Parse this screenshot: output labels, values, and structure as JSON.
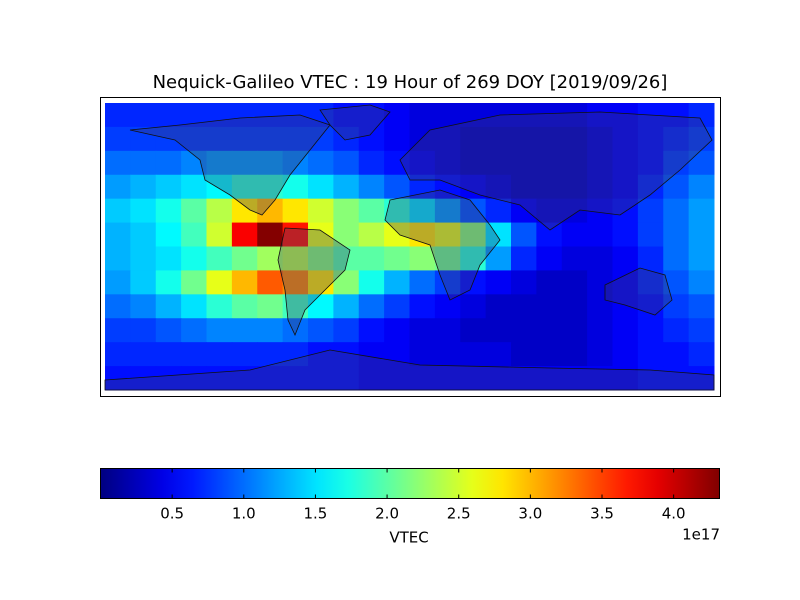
{
  "chart_data": {
    "type": "heatmap",
    "title": "Nequick-Galileo VTEC : 19 Hour of 269 DOY [2019/09/26]",
    "colormap": "jet",
    "xlim": [
      -180,
      180
    ],
    "ylim": [
      90,
      -90
    ],
    "values": [
      [
        0.7,
        0.7,
        0.7,
        0.7,
        0.7,
        0.7,
        0.7,
        0.7,
        0.7,
        0.6,
        0.6,
        0.5,
        0.4,
        0.4,
        0.4,
        0.4,
        0.4,
        0.4,
        0.4,
        0.5,
        0.5,
        0.6,
        0.6,
        0.7
      ],
      [
        0.8,
        0.8,
        0.8,
        0.8,
        0.8,
        0.8,
        0.8,
        0.8,
        0.8,
        0.7,
        0.6,
        0.5,
        0.4,
        0.4,
        0.3,
        0.3,
        0.3,
        0.3,
        0.3,
        0.4,
        0.5,
        0.6,
        0.7,
        0.8
      ],
      [
        1.0,
        1.0,
        1.0,
        1.1,
        1.2,
        1.2,
        1.2,
        1.1,
        1.0,
        0.9,
        0.7,
        0.6,
        0.5,
        0.4,
        0.3,
        0.3,
        0.3,
        0.3,
        0.3,
        0.4,
        0.5,
        0.6,
        0.8,
        0.9
      ],
      [
        1.2,
        1.3,
        1.4,
        1.5,
        1.6,
        1.8,
        1.8,
        1.7,
        1.5,
        1.3,
        1.1,
        0.9,
        0.7,
        0.6,
        0.5,
        0.4,
        0.3,
        0.3,
        0.3,
        0.4,
        0.5,
        0.7,
        0.9,
        1.1
      ],
      [
        1.4,
        1.5,
        1.7,
        2.0,
        2.4,
        2.8,
        3.0,
        2.8,
        2.5,
        2.2,
        2.0,
        1.8,
        1.5,
        1.2,
        0.9,
        0.7,
        0.5,
        0.4,
        0.4,
        0.5,
        0.6,
        0.8,
        1.0,
        1.2
      ],
      [
        1.3,
        1.4,
        1.6,
        1.9,
        2.5,
        3.8,
        4.3,
        3.7,
        2.6,
        2.2,
        2.4,
        2.6,
        2.8,
        2.6,
        2.2,
        1.5,
        0.9,
        0.6,
        0.5,
        0.5,
        0.6,
        0.8,
        1.0,
        1.2
      ],
      [
        1.3,
        1.4,
        1.5,
        1.7,
        1.9,
        2.1,
        2.3,
        2.4,
        2.2,
        2.0,
        2.0,
        2.1,
        2.2,
        2.1,
        1.8,
        1.2,
        0.7,
        0.5,
        0.4,
        0.4,
        0.5,
        0.7,
        1.0,
        1.2
      ],
      [
        1.2,
        1.4,
        1.7,
        2.1,
        2.6,
        3.0,
        3.4,
        3.2,
        2.8,
        2.2,
        1.7,
        1.3,
        1.0,
        0.8,
        0.6,
        0.5,
        0.4,
        0.3,
        0.3,
        0.4,
        0.5,
        0.7,
        0.9,
        1.1
      ],
      [
        1.0,
        1.1,
        1.3,
        1.5,
        1.8,
        2.0,
        2.1,
        1.9,
        1.6,
        1.3,
        1.0,
        0.8,
        0.6,
        0.5,
        0.4,
        0.3,
        0.3,
        0.3,
        0.3,
        0.4,
        0.5,
        0.6,
        0.8,
        0.9
      ],
      [
        0.8,
        0.8,
        0.9,
        1.0,
        1.1,
        1.1,
        1.1,
        1.0,
        0.9,
        0.8,
        0.6,
        0.5,
        0.4,
        0.4,
        0.3,
        0.3,
        0.3,
        0.3,
        0.3,
        0.4,
        0.5,
        0.6,
        0.7,
        0.8
      ],
      [
        0.7,
        0.7,
        0.7,
        0.7,
        0.7,
        0.7,
        0.7,
        0.7,
        0.6,
        0.6,
        0.5,
        0.5,
        0.4,
        0.4,
        0.4,
        0.4,
        0.3,
        0.3,
        0.3,
        0.4,
        0.5,
        0.6,
        0.6,
        0.7
      ],
      [
        0.6,
        0.6,
        0.6,
        0.6,
        0.6,
        0.6,
        0.6,
        0.6,
        0.6,
        0.6,
        0.5,
        0.5,
        0.5,
        0.5,
        0.5,
        0.5,
        0.5,
        0.5,
        0.5,
        0.5,
        0.5,
        0.6,
        0.6,
        0.6
      ]
    ],
    "colorbar": {
      "label": "VTEC",
      "offset_label": "1e17",
      "lim": [
        0,
        4.32
      ],
      "ticks": [
        0.5,
        {
          "value": 1,
          "label": "1.0"
        },
        1.5,
        {
          "value": 2,
          "label": "2.0"
        },
        2.5,
        {
          "value": 3,
          "label": "3.0"
        },
        3.5,
        {
          "value": 4,
          "label": "4.0"
        }
      ]
    }
  }
}
